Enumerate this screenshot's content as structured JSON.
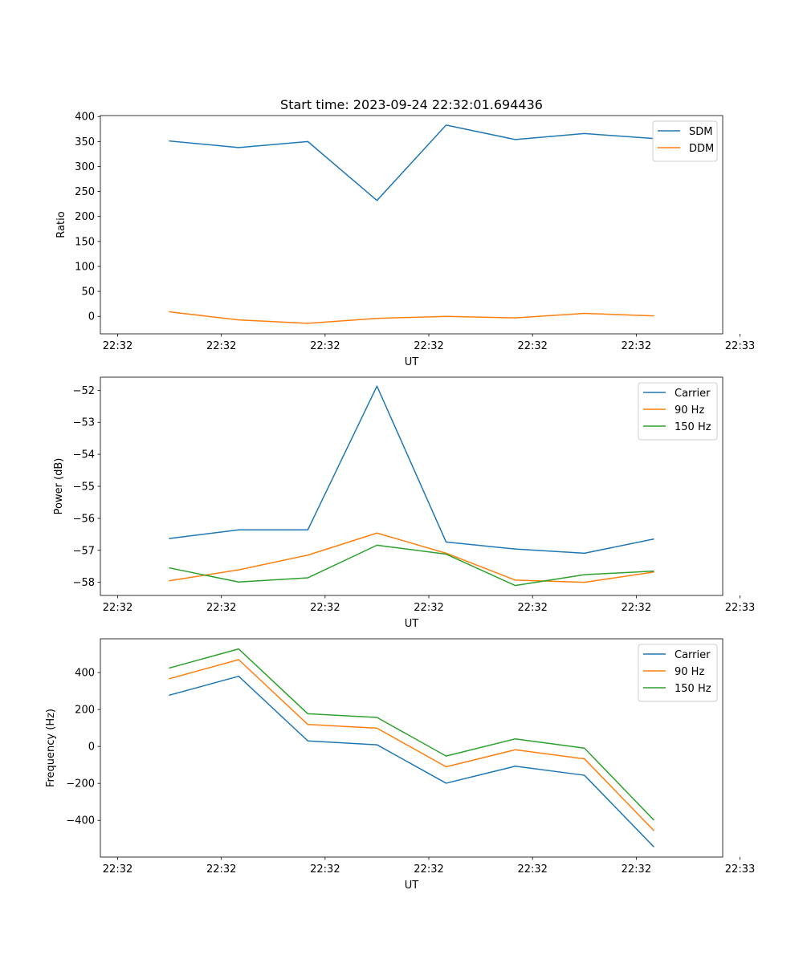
{
  "figure_title": "Start time: 2023-09-24 22:32:01.694436",
  "chart_data": [
    {
      "type": "line",
      "title": "Start time: 2023-09-24 22:32:01.694436",
      "xlabel": "UT",
      "ylabel": "Ratio",
      "xlim": [
        0,
        9
      ],
      "ylim": [
        -35,
        402
      ],
      "x_ticks": [
        0.25,
        1.75,
        3.25,
        4.75,
        6.25,
        7.75,
        9.25
      ],
      "x_tick_labels": [
        "22:32",
        "22:32",
        "22:32",
        "22:32",
        "22:32",
        "22:32",
        "22:33"
      ],
      "y_ticks": [
        0,
        50,
        100,
        150,
        200,
        250,
        300,
        350,
        400
      ],
      "y_tick_labels": [
        "0",
        "50",
        "100",
        "150",
        "200",
        "250",
        "300",
        "350",
        "400"
      ],
      "legend_position": "top-right",
      "x": [
        1,
        2,
        3,
        4,
        5,
        6,
        7,
        8
      ],
      "series": [
        {
          "name": "SDM",
          "color": "#1f77b4",
          "values": [
            351,
            338,
            350,
            232,
            383,
            354,
            366,
            356
          ]
        },
        {
          "name": "DDM",
          "color": "#ff7f0e",
          "values": [
            9,
            -7,
            -14,
            -4,
            0,
            -3,
            6,
            1
          ]
        }
      ]
    },
    {
      "type": "line",
      "title": "",
      "xlabel": "UT",
      "ylabel": "Power (dB)",
      "xlim": [
        0,
        9
      ],
      "ylim": [
        -58.41,
        -51.59
      ],
      "x_ticks": [
        0.25,
        1.75,
        3.25,
        4.75,
        6.25,
        7.75,
        9.25
      ],
      "x_tick_labels": [
        "22:32",
        "22:32",
        "22:32",
        "22:32",
        "22:32",
        "22:32",
        "22:33"
      ],
      "y_ticks": [
        -58,
        -57,
        -56,
        -55,
        -54,
        -53,
        -52
      ],
      "y_tick_labels": [
        "−58",
        "−57",
        "−56",
        "−55",
        "−54",
        "−53",
        "−52"
      ],
      "legend_position": "top-right",
      "x": [
        1,
        2,
        3,
        4,
        5,
        6,
        7,
        8
      ],
      "series": [
        {
          "name": "Carrier",
          "color": "#1f77b4",
          "values": [
            -56.63,
            -56.36,
            -56.36,
            -51.87,
            -56.74,
            -56.96,
            -57.09,
            -56.65
          ]
        },
        {
          "name": "90 Hz",
          "color": "#ff7f0e",
          "values": [
            -57.95,
            -57.61,
            -57.15,
            -56.46,
            -57.09,
            -57.93,
            -58.0,
            -57.68
          ]
        },
        {
          "name": "150 Hz",
          "color": "#2ca02c",
          "values": [
            -57.55,
            -57.99,
            -57.86,
            -56.84,
            -57.12,
            -58.1,
            -57.76,
            -57.65
          ]
        }
      ]
    },
    {
      "type": "line",
      "title": "",
      "xlabel": "UT",
      "ylabel": "Frequency (Hz)",
      "xlim": [
        0,
        9
      ],
      "ylim": [
        -599,
        583
      ],
      "x_ticks": [
        0.25,
        1.75,
        3.25,
        4.75,
        6.25,
        7.75,
        9.25
      ],
      "x_tick_labels": [
        "22:32",
        "22:32",
        "22:32",
        "22:32",
        "22:32",
        "22:32",
        "22:33"
      ],
      "y_ticks": [
        -400,
        -200,
        0,
        200,
        400
      ],
      "y_tick_labels": [
        "−400",
        "−200",
        "0",
        "200",
        "400"
      ],
      "legend_position": "top-right",
      "x": [
        1,
        2,
        3,
        4,
        5,
        6,
        7,
        8
      ],
      "series": [
        {
          "name": "Carrier",
          "color": "#1f77b4",
          "values": [
            278,
            380,
            30,
            9,
            -199,
            -107,
            -156,
            -542
          ]
        },
        {
          "name": "90 Hz",
          "color": "#ff7f0e",
          "values": [
            367,
            470,
            119,
            99,
            -110,
            -18,
            -67,
            -454
          ]
        },
        {
          "name": "150 Hz",
          "color": "#2ca02c",
          "values": [
            425,
            528,
            177,
            157,
            -52,
            41,
            -9,
            -397
          ]
        }
      ]
    }
  ]
}
